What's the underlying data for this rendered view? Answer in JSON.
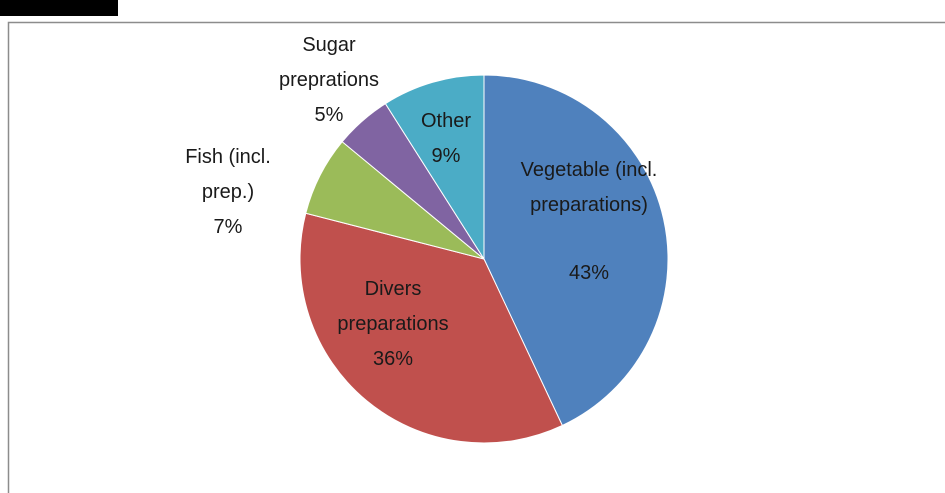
{
  "chart_data": {
    "type": "pie",
    "categories": [
      "Vegetable (incl. preparations)",
      "Divers preparations",
      "Fish (incl. prep.)",
      "Sugar preprations",
      "Other"
    ],
    "values": [
      43,
      36,
      7,
      5,
      9
    ],
    "value_labels": [
      "43%",
      "36%",
      "7%",
      "5%",
      "9%"
    ],
    "colors": [
      "#4f81bd",
      "#c0504d",
      "#9bbb59",
      "#8064a2",
      "#4bacc6"
    ]
  }
}
